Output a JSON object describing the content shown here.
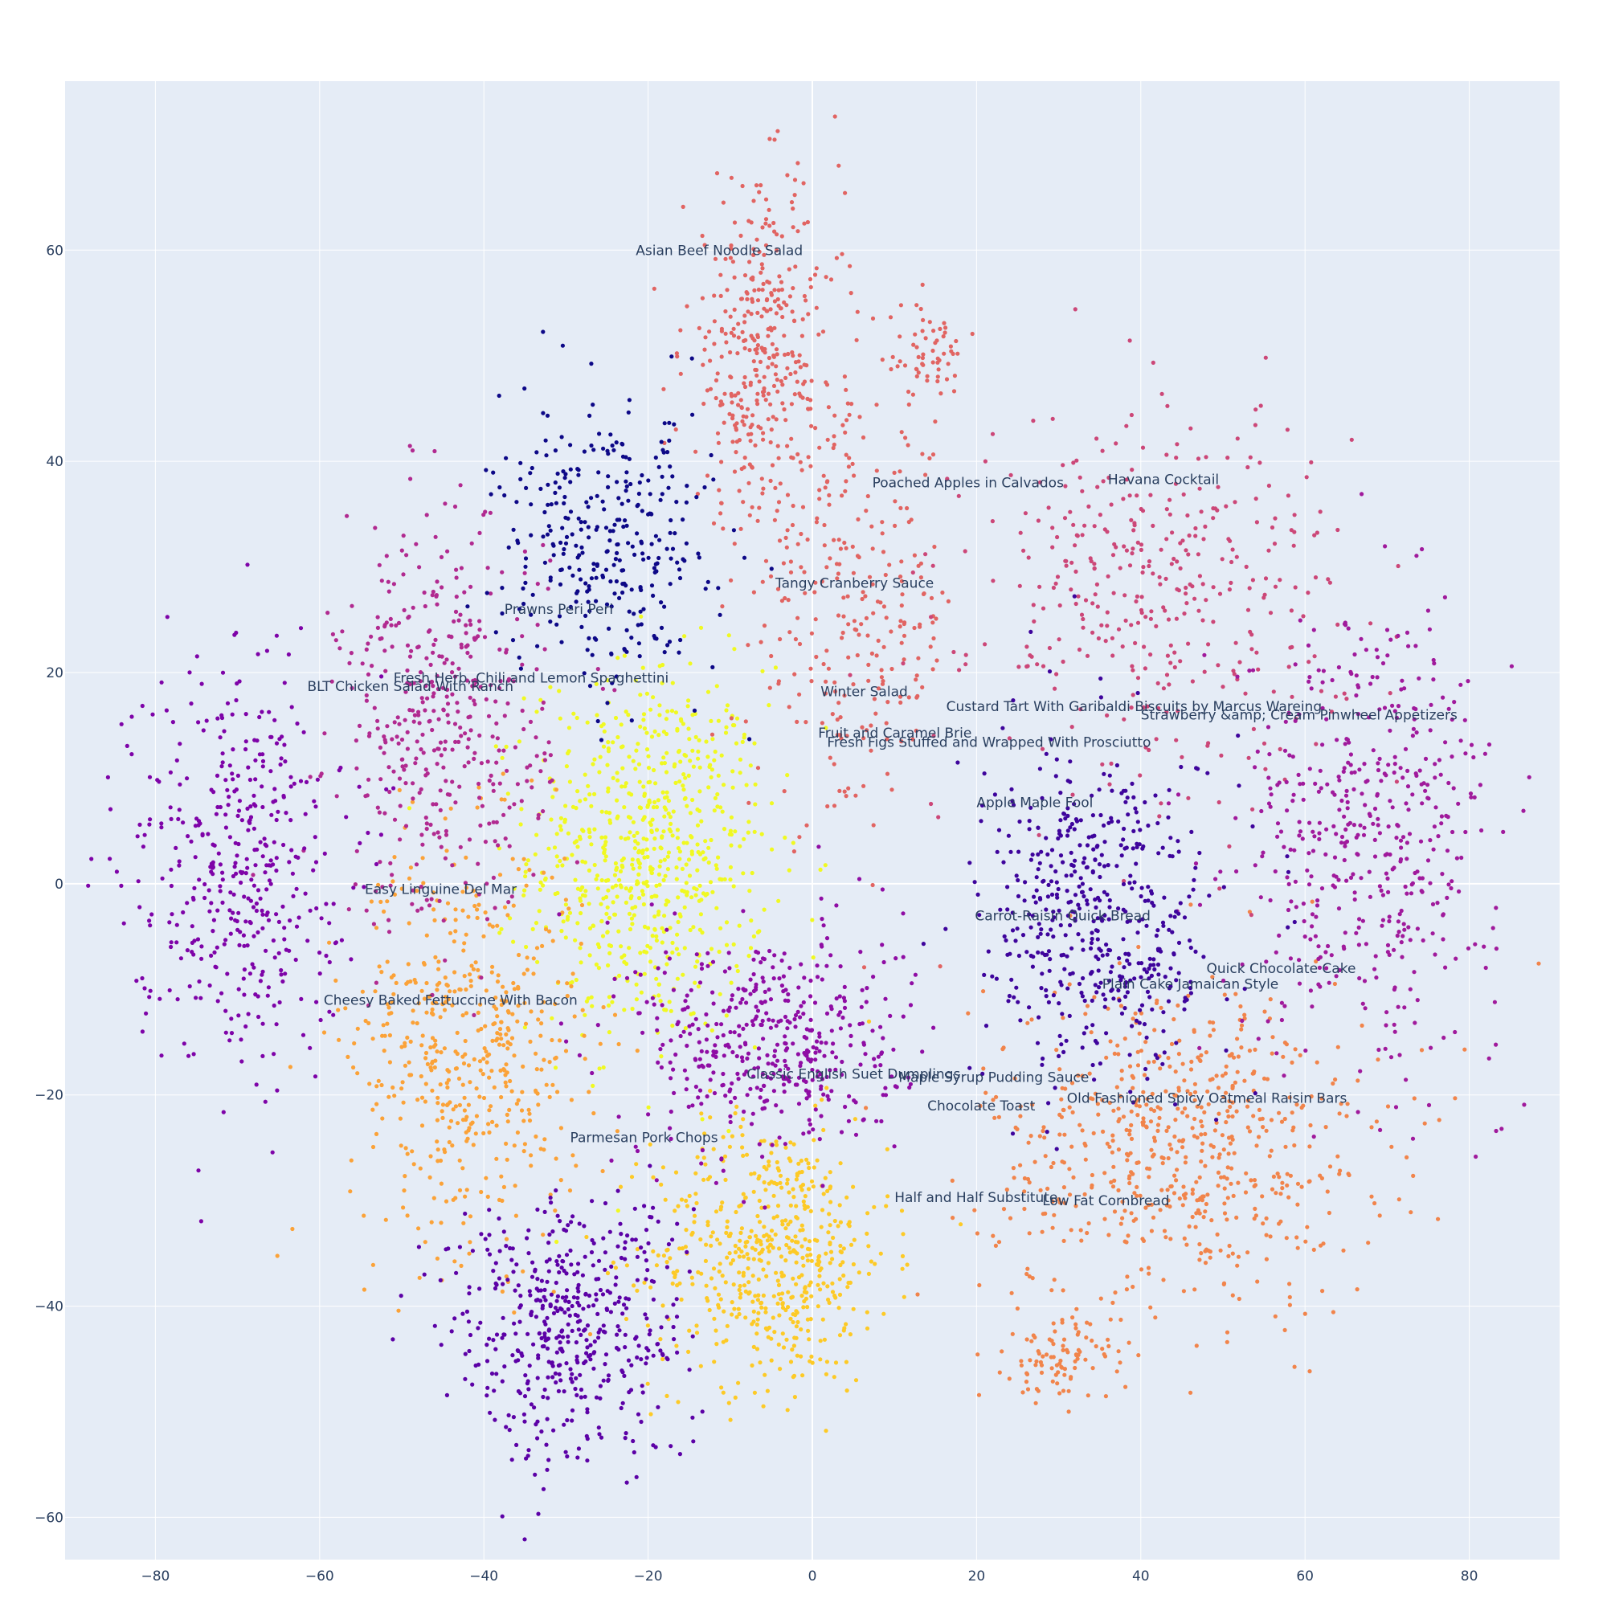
{
  "chart_data": {
    "type": "scatter",
    "title": "",
    "xlabel": "",
    "ylabel": "",
    "xlim": [
      -91,
      91
    ],
    "ylim": [
      -64,
      76
    ],
    "x_ticks": [
      -80,
      -60,
      -40,
      -20,
      0,
      20,
      40,
      60,
      80
    ],
    "y_ticks": [
      -60,
      -40,
      -20,
      0,
      20,
      40,
      60
    ],
    "x_tick_labels": [
      "−80",
      "−60",
      "−40",
      "−20",
      "0",
      "20",
      "40",
      "60",
      "80"
    ],
    "y_tick_labels": [
      "−60",
      "−40",
      "−20",
      "0",
      "20",
      "40",
      "60"
    ],
    "grid": true,
    "legend": "none",
    "plot_bgcolor": "#e5ecf6",
    "colorscale": "plasma",
    "clusters": [
      {
        "color": "#f0f921",
        "center": [
          -20,
          3
        ],
        "spread": [
          9,
          11
        ],
        "count": 700
      },
      {
        "color": "#fdca26",
        "center": [
          -5,
          -35
        ],
        "spread": [
          9,
          8
        ],
        "count": 560
      },
      {
        "color": "#fba238",
        "center": [
          -42,
          -15
        ],
        "spread": [
          9,
          12
        ],
        "count": 520
      },
      {
        "color": "#f1844b",
        "center": [
          45,
          -25
        ],
        "spread": [
          15,
          10
        ],
        "count": 640
      },
      {
        "color": "#f1844b",
        "center": [
          30,
          -45
        ],
        "spread": [
          4,
          2.5
        ],
        "count": 90
      },
      {
        "color": "#e16462",
        "center": [
          -6,
          50
        ],
        "spread": [
          6,
          10
        ],
        "count": 380
      },
      {
        "color": "#e16462",
        "center": [
          5,
          25
        ],
        "spread": [
          8,
          12
        ],
        "count": 260
      },
      {
        "color": "#e16462",
        "center": [
          14,
          50
        ],
        "spread": [
          3,
          3
        ],
        "count": 60
      },
      {
        "color": "#cc4778",
        "center": [
          42,
          28
        ],
        "spread": [
          14,
          11
        ],
        "count": 380
      },
      {
        "color": "#b12a90",
        "center": [
          -45,
          15
        ],
        "spread": [
          8,
          12
        ],
        "count": 420
      },
      {
        "color": "#a01a9c",
        "center": [
          68,
          5
        ],
        "spread": [
          10,
          13
        ],
        "count": 480
      },
      {
        "color": "#8f0da4",
        "center": [
          -5,
          -15
        ],
        "spread": [
          10,
          7
        ],
        "count": 460
      },
      {
        "color": "#7e03a8",
        "center": [
          -70,
          2
        ],
        "spread": [
          8,
          12
        ],
        "count": 430
      },
      {
        "color": "#5c01a6",
        "center": [
          -30,
          -42
        ],
        "spread": [
          9,
          8
        ],
        "count": 480
      },
      {
        "color": "#3e049c",
        "center": [
          35,
          -3
        ],
        "spread": [
          9,
          10
        ],
        "count": 500
      },
      {
        "color": "#0d0887",
        "center": [
          -25,
          32
        ],
        "spread": [
          8,
          8
        ],
        "count": 330
      }
    ],
    "annotations": [
      {
        "text": "Asian Beef Noodle Salad",
        "x": -21.5,
        "y": 60
      },
      {
        "text": "Poached Apples in Calvados",
        "x": 7.3,
        "y": 38
      },
      {
        "text": "Havana Cocktail",
        "x": 36,
        "y": 38.3
      },
      {
        "text": "Tangy Cranberry Sauce",
        "x": -4.5,
        "y": 28.5
      },
      {
        "text": "Prawns Peri Peri",
        "x": -37.5,
        "y": 26
      },
      {
        "text": "Fresh Herb, Chili and Lemon Spaghettini",
        "x": -51,
        "y": 19.5
      },
      {
        "text": "BLT Chicken Salad With Ranch",
        "x": -61.5,
        "y": 18.7
      },
      {
        "text": "Winter Salad",
        "x": 1,
        "y": 18.2
      },
      {
        "text": "Custard Tart With Garibaldi Biscuits by Marcus Wareing",
        "x": 16.3,
        "y": 16.8
      },
      {
        "text": "Strawberry &amp; Cream Pinwheel Appetizers",
        "x": 40,
        "y": 16
      },
      {
        "text": "Fruit and Caramel Brie",
        "x": 0.7,
        "y": 14.3
      },
      {
        "text": "Fresh Figs Stuffed and Wrapped With Prosciutto",
        "x": 1.8,
        "y": 13.4
      },
      {
        "text": "Apple Maple Fool",
        "x": 20,
        "y": 7.7
      },
      {
        "text": "Easy Linguine Del Mar",
        "x": -54.5,
        "y": -0.5
      },
      {
        "text": "Carrot-Raisin Quick Bread",
        "x": 19.8,
        "y": -3
      },
      {
        "text": "Quick Chocolate Cake",
        "x": 48,
        "y": -8
      },
      {
        "text": "Plain Cake Jamaican Style",
        "x": 35.3,
        "y": -9.5
      },
      {
        "text": "Cheesy Baked Fettuccine With Bacon",
        "x": -59.5,
        "y": -11
      },
      {
        "text": "Classic English Suet Dumplings",
        "x": -8,
        "y": -18
      },
      {
        "text": "Maple Syrup Pudding Sauce",
        "x": 10.5,
        "y": -18.3
      },
      {
        "text": "Old Fashioned Spicy Oatmeal Raisin Bars",
        "x": 31,
        "y": -20.3
      },
      {
        "text": "Chocolate Toast",
        "x": 14,
        "y": -21
      },
      {
        "text": "Parmesan Pork Chops",
        "x": -29.5,
        "y": -24
      },
      {
        "text": "Half and Half Substitute",
        "x": 10,
        "y": -29.7
      },
      {
        "text": "Low Fat Cornbread",
        "x": 28,
        "y": -30
      }
    ]
  }
}
